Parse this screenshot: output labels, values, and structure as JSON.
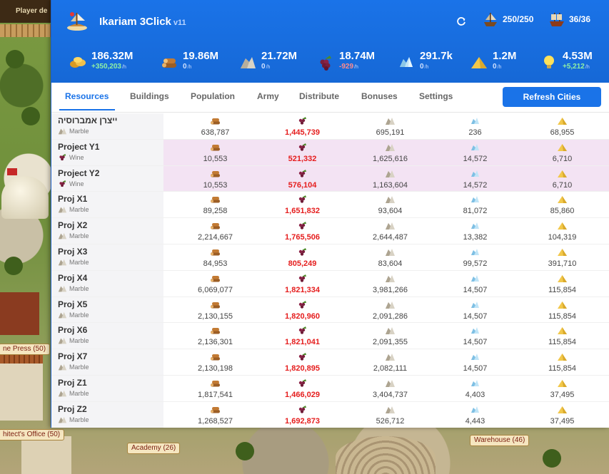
{
  "game": {
    "player_label": "Player de",
    "buildings": [
      {
        "label": "ne Press (50)"
      },
      {
        "label": "hitect's Office (50)"
      },
      {
        "label": "Academy (26)"
      },
      {
        "label": "Warehouse (46)"
      }
    ]
  },
  "header": {
    "title": "Ikariam 3Click",
    "version": "v11",
    "ships": "250/250",
    "fleet": "36/36"
  },
  "resources": [
    {
      "name": "gold",
      "icon": "gold-icon",
      "value": "186.32M",
      "rate": "+350,203",
      "unit": "/h",
      "trend": "pos"
    },
    {
      "name": "wood",
      "icon": "wood-icon",
      "value": "19.86M",
      "rate": "0",
      "unit": "/h",
      "trend": "zero"
    },
    {
      "name": "marble",
      "icon": "marble-icon",
      "value": "21.72M",
      "rate": "0",
      "unit": "/h",
      "trend": "zero"
    },
    {
      "name": "wine",
      "icon": "wine-icon",
      "value": "18.74M",
      "rate": "-929",
      "unit": "/h",
      "trend": "neg"
    },
    {
      "name": "crystal",
      "icon": "crystal-icon",
      "value": "291.7k",
      "rate": "0",
      "unit": "/h",
      "trend": "zero"
    },
    {
      "name": "sulfur",
      "icon": "sulfur-icon",
      "value": "1.2M",
      "rate": "0",
      "unit": "/h",
      "trend": "zero"
    },
    {
      "name": "research",
      "icon": "bulb-icon",
      "value": "4.53M",
      "rate": "+5,212",
      "unit": "/h",
      "trend": "pos"
    }
  ],
  "tabs": [
    "Resources",
    "Buildings",
    "Population",
    "Army",
    "Distribute",
    "Bonuses",
    "Settings"
  ],
  "active_tab": "Resources",
  "refresh_button": "Refresh Cities",
  "columns": [
    "wood",
    "wine",
    "marble",
    "crystal",
    "sulfur"
  ],
  "cities": [
    {
      "name": "ייצרן אמברוסיה",
      "good": "Marble",
      "good_icon": "marble",
      "highlight": false,
      "values": [
        "638,787",
        "1,445,739",
        "695,191",
        "236",
        "68,955"
      ]
    },
    {
      "name": "Project Y1",
      "good": "Wine",
      "good_icon": "wine",
      "highlight": true,
      "values": [
        "10,553",
        "521,332",
        "1,625,616",
        "14,572",
        "6,710"
      ]
    },
    {
      "name": "Project Y2",
      "good": "Wine",
      "good_icon": "wine",
      "highlight": true,
      "values": [
        "10,553",
        "576,104",
        "1,163,604",
        "14,572",
        "6,710"
      ]
    },
    {
      "name": "Proj X1",
      "good": "Marble",
      "good_icon": "marble",
      "highlight": false,
      "values": [
        "89,258",
        "1,651,832",
        "93,604",
        "81,072",
        "85,860"
      ]
    },
    {
      "name": "Proj X2",
      "good": "Marble",
      "good_icon": "marble",
      "highlight": false,
      "values": [
        "2,214,667",
        "1,765,506",
        "2,644,487",
        "13,382",
        "104,319"
      ]
    },
    {
      "name": "Proj X3",
      "good": "Marble",
      "good_icon": "marble",
      "highlight": false,
      "values": [
        "84,953",
        "805,249",
        "83,604",
        "99,572",
        "391,710"
      ]
    },
    {
      "name": "Proj X4",
      "good": "Marble",
      "good_icon": "marble",
      "highlight": false,
      "values": [
        "6,069,077",
        "1,821,334",
        "3,981,266",
        "14,507",
        "115,854"
      ]
    },
    {
      "name": "Proj X5",
      "good": "Marble",
      "good_icon": "marble",
      "highlight": false,
      "values": [
        "2,130,155",
        "1,820,960",
        "2,091,286",
        "14,507",
        "115,854"
      ]
    },
    {
      "name": "Proj X6",
      "good": "Marble",
      "good_icon": "marble",
      "highlight": false,
      "values": [
        "2,136,301",
        "1,821,041",
        "2,091,355",
        "14,507",
        "115,854"
      ]
    },
    {
      "name": "Proj X7",
      "good": "Marble",
      "good_icon": "marble",
      "highlight": false,
      "values": [
        "2,130,198",
        "1,820,895",
        "2,082,111",
        "14,507",
        "115,854"
      ]
    },
    {
      "name": "Proj Z1",
      "good": "Marble",
      "good_icon": "marble",
      "highlight": false,
      "values": [
        "1,817,541",
        "1,466,029",
        "3,404,737",
        "4,403",
        "37,495"
      ]
    },
    {
      "name": "Proj Z2",
      "good": "Marble",
      "good_icon": "marble",
      "highlight": false,
      "values": [
        "1,268,527",
        "1,692,873",
        "526,712",
        "4,443",
        "37,495"
      ]
    }
  ]
}
